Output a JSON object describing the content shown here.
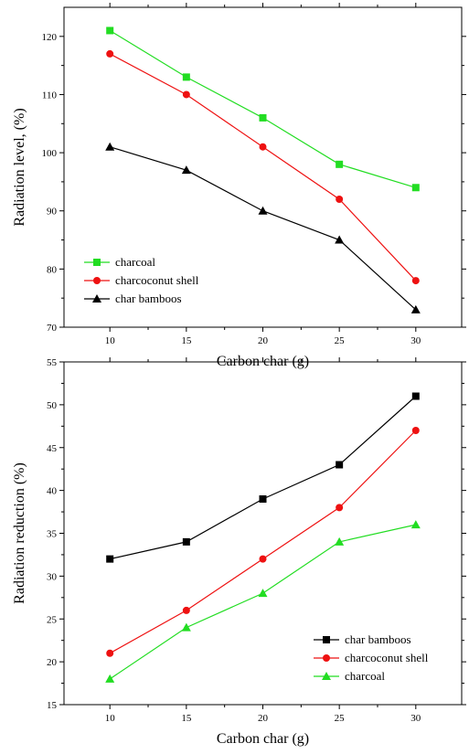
{
  "chart_data": [
    {
      "type": "line",
      "title": "",
      "xlabel": "Carbon char (g)",
      "ylabel": "Radiation level, (%)",
      "x": [
        10,
        15,
        20,
        25,
        30
      ],
      "xlim": [
        7,
        33
      ],
      "ylim": [
        70,
        125
      ],
      "xticks": [
        10,
        15,
        20,
        25,
        30
      ],
      "yticks": [
        70,
        80,
        90,
        100,
        110,
        120
      ],
      "grid": false,
      "legend_position": "bottom-left",
      "series": [
        {
          "name": "charcoal",
          "color": "#22dd22",
          "marker": "square",
          "values": [
            121,
            113,
            106,
            98,
            94
          ]
        },
        {
          "name": "charcoconut shell",
          "color": "#ee1111",
          "marker": "circle",
          "values": [
            117,
            110,
            101,
            92,
            78
          ]
        },
        {
          "name": "char bamboos",
          "color": "#000000",
          "marker": "triangle",
          "values": [
            101,
            97,
            90,
            85,
            73
          ]
        }
      ]
    },
    {
      "type": "line",
      "title": "",
      "xlabel": "Carbon char (g)",
      "ylabel": "Radiation reduction (%)",
      "x": [
        10,
        15,
        20,
        25,
        30
      ],
      "xlim": [
        7,
        33
      ],
      "ylim": [
        15,
        55
      ],
      "xticks": [
        10,
        15,
        20,
        25,
        30
      ],
      "yticks": [
        15,
        20,
        25,
        30,
        35,
        40,
        45,
        50,
        55
      ],
      "grid": false,
      "legend_position": "bottom-right",
      "series": [
        {
          "name": "char bamboos",
          "color": "#000000",
          "marker": "square",
          "values": [
            32,
            34,
            39,
            43,
            51
          ]
        },
        {
          "name": "charcoconut shell",
          "color": "#ee1111",
          "marker": "circle",
          "values": [
            21,
            26,
            32,
            38,
            47
          ]
        },
        {
          "name": "charcoal",
          "color": "#22dd22",
          "marker": "triangle",
          "values": [
            18,
            24,
            28,
            34,
            36
          ]
        }
      ]
    }
  ]
}
